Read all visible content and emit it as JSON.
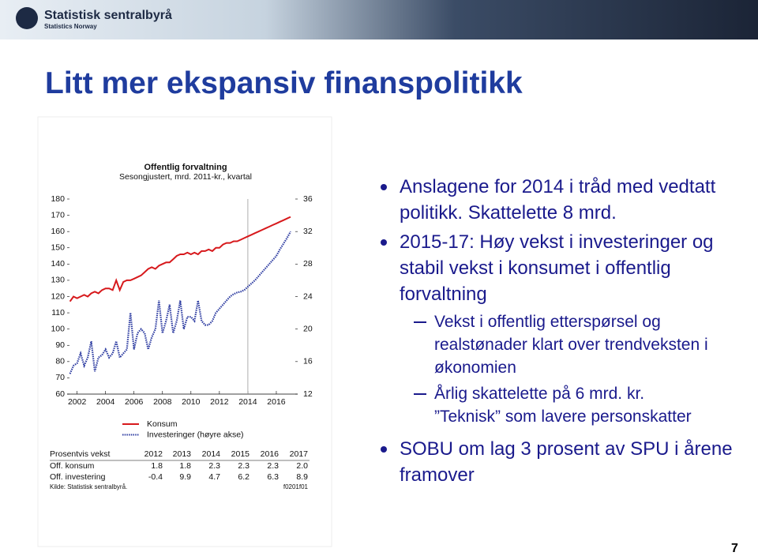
{
  "slide": {
    "logo": "Statistisk sentralbyrå",
    "logo_sub": "Statistics Norway",
    "title": "Litt mer ekspansiv finanspolitikk",
    "page_number": "7",
    "bullets": [
      {
        "text": "Anslagene for 2014 i tråd med vedtatt politikk. Skattelette 8 mrd."
      },
      {
        "text": "2015-17: Høy vekst i investeringer og stabil vekst i konsumet i offentlig forvaltning",
        "sub": [
          "Vekst i offentlig etterspørsel og realstønader klart over trendveksten i økonomien",
          "Årlig skattelette på 6 mrd. kr.\n”Teknisk” som lavere personskatter"
        ]
      },
      {
        "text": "SOBU om lag 3 prosent av SPU i årene framover"
      }
    ]
  },
  "chart_data": {
    "type": "line",
    "title": "Offentlig forvaltning",
    "subtitle": "Sesongjustert, mrd. 2011-kr., kvartal",
    "x": [
      2001.5,
      2001.75,
      2002,
      2002.25,
      2002.5,
      2002.75,
      2003,
      2003.25,
      2003.5,
      2003.75,
      2004,
      2004.25,
      2004.5,
      2004.75,
      2005,
      2005.25,
      2005.5,
      2005.75,
      2006,
      2006.25,
      2006.5,
      2006.75,
      2007,
      2007.25,
      2007.5,
      2007.75,
      2008,
      2008.25,
      2008.5,
      2008.75,
      2009,
      2009.25,
      2009.5,
      2009.75,
      2010,
      2010.25,
      2010.5,
      2010.75,
      2011,
      2011.25,
      2011.5,
      2011.75,
      2012,
      2012.25,
      2012.5,
      2012.75,
      2013,
      2013.25,
      2013.5,
      2013.75,
      2014,
      2014.25,
      2014.5,
      2014.75,
      2015,
      2015.25,
      2015.5,
      2015.75,
      2016,
      2016.25,
      2016.5,
      2016.75,
      2017
    ],
    "series": [
      {
        "name": "Konsum",
        "color": "#d7191c",
        "values": [
          117,
          120,
          119,
          120,
          121,
          120,
          122,
          123,
          122,
          124,
          125,
          125,
          124,
          130,
          124,
          129,
          130,
          130,
          131,
          132,
          133,
          135,
          137,
          138,
          137,
          139,
          140,
          141,
          141,
          143,
          145,
          146,
          146,
          147,
          146,
          147,
          146,
          148,
          148,
          149,
          148,
          150,
          150,
          152,
          153,
          153,
          154,
          154,
          155,
          156,
          157,
          158,
          159,
          160,
          161,
          162,
          163,
          164,
          165,
          166,
          167,
          168,
          169
        ]
      },
      {
        "name": "Investeringer (høyre akse)",
        "color": "#2b3aa0",
        "axis": "y2",
        "dashed": true,
        "values": [
          14.5,
          15.5,
          15.8,
          17.0,
          15.5,
          16.5,
          18.5,
          14.8,
          16.5,
          16.8,
          17.5,
          16.5,
          17.0,
          18.5,
          16.5,
          17.0,
          17.5,
          22.0,
          17.5,
          19.5,
          20.0,
          19.5,
          17.5,
          19.0,
          20.0,
          23.5,
          19.5,
          21.0,
          23.0,
          19.5,
          21.0,
          23.5,
          20.0,
          21.5,
          21.5,
          21.0,
          23.5,
          21.0,
          20.5,
          20.5,
          21.0,
          22.0,
          22.5,
          23.0,
          23.5,
          24.0,
          24.3,
          24.5,
          24.6,
          24.8,
          25.2,
          25.6,
          26.0,
          26.5,
          27.0,
          27.5,
          28.0,
          28.5,
          29.0,
          29.8,
          30.5,
          31.2,
          32.0
        ]
      }
    ],
    "xlim": [
      2001.3,
      2017.5
    ],
    "xticks": [
      2002,
      2004,
      2006,
      2008,
      2010,
      2012,
      2014,
      2016
    ],
    "ylim": [
      60,
      180
    ],
    "yticks": [
      60,
      70,
      80,
      90,
      100,
      110,
      120,
      130,
      140,
      150,
      160,
      170,
      180
    ],
    "y2lim": [
      12,
      36
    ],
    "y2ticks": [
      12,
      16,
      20,
      24,
      28,
      32,
      36
    ],
    "vline": 2014,
    "grid": false,
    "table": {
      "header": [
        "Prosentvis vekst",
        "2012",
        "2013",
        "2014",
        "2015",
        "2016",
        "2017"
      ],
      "rows": [
        [
          "Off. konsum",
          "1.8",
          "1.8",
          "2.3",
          "2.3",
          "2.3",
          "2.0"
        ],
        [
          "Off. investering",
          "-0.4",
          "9.9",
          "4.7",
          "6.2",
          "6.3",
          "8.9"
        ]
      ]
    },
    "source": "Kilde: Statistisk sentralbyrå.",
    "code": "f0201f01"
  }
}
